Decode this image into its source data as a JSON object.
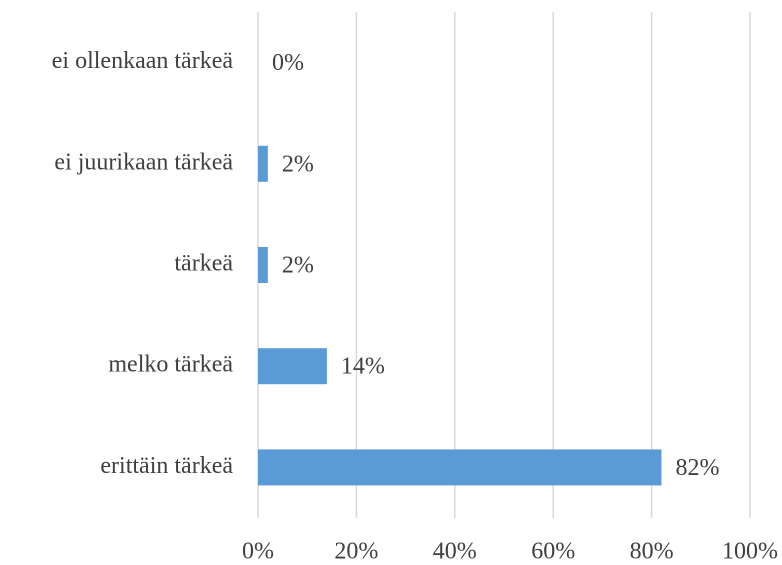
{
  "chart_data": {
    "type": "hbar",
    "categories": [
      "ei ollenkaan tärkeä",
      "ei juurikaan tärkeä",
      "tärkeä",
      "melko tärkeä",
      "erittäin tärkeä"
    ],
    "values": [
      0,
      2,
      2,
      14,
      82
    ],
    "value_labels": [
      "0%",
      "2%",
      "2%",
      "14%",
      "82%"
    ],
    "color": "#5b9bd5",
    "xlim": [
      0,
      100
    ],
    "xticks": [
      {
        "value": 0,
        "label": "0%"
      },
      {
        "value": 20,
        "label": "20%"
      },
      {
        "value": 40,
        "label": "40%"
      },
      {
        "value": 60,
        "label": "60%"
      },
      {
        "value": 80,
        "label": "80%"
      },
      {
        "value": 100,
        "label": "100%"
      }
    ],
    "grid": true
  }
}
